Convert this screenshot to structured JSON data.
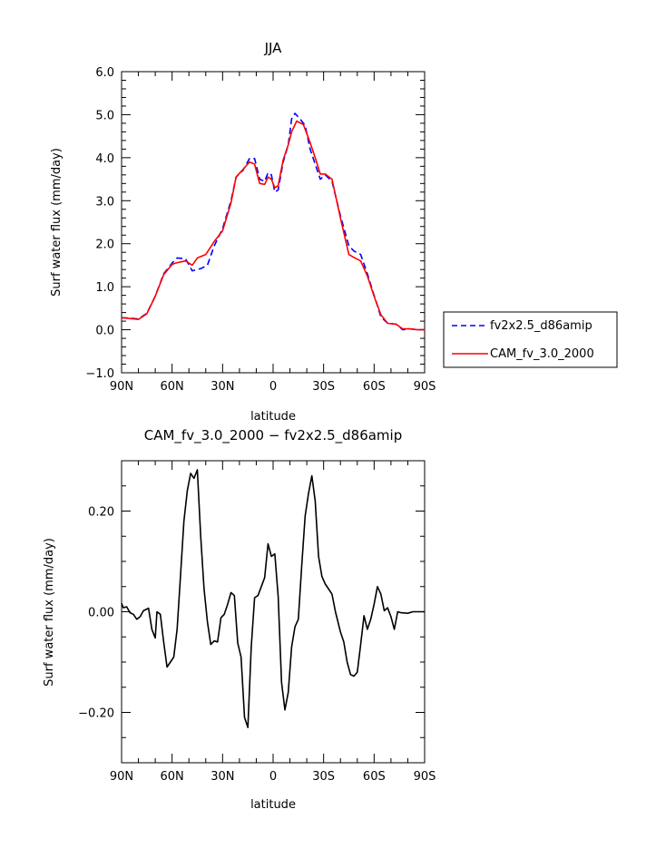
{
  "chart_data": [
    {
      "type": "line",
      "title": "JJA",
      "xlabel": "latitude",
      "ylabel": "Surf water flux (mm/day)",
      "xlim": [
        -90,
        90
      ],
      "ylim": [
        -1.0,
        6.0
      ],
      "x_ticks": [
        {
          "value": -90,
          "label": "90N"
        },
        {
          "value": -60,
          "label": "60N"
        },
        {
          "value": -30,
          "label": "30N"
        },
        {
          "value": 0,
          "label": "0"
        },
        {
          "value": 30,
          "label": "30S"
        },
        {
          "value": 60,
          "label": "60S"
        },
        {
          "value": 90,
          "label": "90S"
        }
      ],
      "y_ticks": [
        {
          "value": -1.0,
          "label": "−1.0"
        },
        {
          "value": 0.0,
          "label": "0.0"
        },
        {
          "value": 1.0,
          "label": "1.0"
        },
        {
          "value": 2.0,
          "label": "2.0"
        },
        {
          "value": 3.0,
          "label": "3.0"
        },
        {
          "value": 4.0,
          "label": "4.0"
        },
        {
          "value": 5.0,
          "label": "5.0"
        },
        {
          "value": 6.0,
          "label": "6.0"
        }
      ],
      "grid": false,
      "legend": "right",
      "series": [
        {
          "name": "fv2x2.5_d86amip",
          "color": "#0000ff",
          "dash": true,
          "points": [
            [
              -90,
              0.28
            ],
            [
              -85,
              0.27
            ],
            [
              -80,
              0.25
            ],
            [
              -75,
              0.38
            ],
            [
              -70,
              0.78
            ],
            [
              -65,
              1.3
            ],
            [
              -60,
              1.55
            ],
            [
              -57,
              1.67
            ],
            [
              -52,
              1.65
            ],
            [
              -48,
              1.37
            ],
            [
              -43,
              1.42
            ],
            [
              -39,
              1.5
            ],
            [
              -35,
              1.95
            ],
            [
              -30,
              2.35
            ],
            [
              -25,
              3.0
            ],
            [
              -22,
              3.55
            ],
            [
              -18,
              3.7
            ],
            [
              -14,
              3.98
            ],
            [
              -11,
              3.98
            ],
            [
              -8,
              3.5
            ],
            [
              -5,
              3.45
            ],
            [
              -3,
              3.65
            ],
            [
              -1,
              3.6
            ],
            [
              1,
              3.2
            ],
            [
              3,
              3.25
            ],
            [
              6,
              3.9
            ],
            [
              9,
              4.3
            ],
            [
              11,
              4.9
            ],
            [
              13,
              5.03
            ],
            [
              16,
              4.9
            ],
            [
              19,
              4.75
            ],
            [
              22,
              4.2
            ],
            [
              25,
              3.85
            ],
            [
              28,
              3.5
            ],
            [
              31,
              3.6
            ],
            [
              35,
              3.45
            ],
            [
              40,
              2.65
            ],
            [
              45,
              1.95
            ],
            [
              48,
              1.83
            ],
            [
              52,
              1.75
            ],
            [
              56,
              1.3
            ],
            [
              60,
              0.8
            ],
            [
              64,
              0.3
            ],
            [
              68,
              0.15
            ],
            [
              73,
              0.13
            ],
            [
              77,
              0.0
            ],
            [
              81,
              0.02
            ],
            [
              86,
              0.0
            ],
            [
              90,
              0.0
            ]
          ]
        },
        {
          "name": "CAM_fv_3.0_2000",
          "color": "#ff0000",
          "dash": false,
          "points": [
            [
              -90,
              0.28
            ],
            [
              -85,
              0.26
            ],
            [
              -80,
              0.24
            ],
            [
              -75,
              0.37
            ],
            [
              -70,
              0.78
            ],
            [
              -65,
              1.28
            ],
            [
              -60,
              1.52
            ],
            [
              -57,
              1.56
            ],
            [
              -52,
              1.6
            ],
            [
              -48,
              1.5
            ],
            [
              -45,
              1.67
            ],
            [
              -40,
              1.75
            ],
            [
              -35,
              2.05
            ],
            [
              -30,
              2.3
            ],
            [
              -25,
              2.95
            ],
            [
              -22,
              3.55
            ],
            [
              -18,
              3.72
            ],
            [
              -14,
              3.9
            ],
            [
              -11,
              3.85
            ],
            [
              -8,
              3.4
            ],
            [
              -5,
              3.38
            ],
            [
              -3,
              3.55
            ],
            [
              -1,
              3.5
            ],
            [
              1,
              3.3
            ],
            [
              3,
              3.35
            ],
            [
              6,
              3.95
            ],
            [
              9,
              4.3
            ],
            [
              11,
              4.6
            ],
            [
              14,
              4.85
            ],
            [
              18,
              4.77
            ],
            [
              22,
              4.35
            ],
            [
              25,
              4.0
            ],
            [
              28,
              3.62
            ],
            [
              31,
              3.62
            ],
            [
              35,
              3.5
            ],
            [
              40,
              2.6
            ],
            [
              45,
              1.75
            ],
            [
              48,
              1.68
            ],
            [
              52,
              1.6
            ],
            [
              56,
              1.25
            ],
            [
              60,
              0.78
            ],
            [
              64,
              0.35
            ],
            [
              68,
              0.15
            ],
            [
              73,
              0.13
            ],
            [
              77,
              0.02
            ],
            [
              81,
              0.02
            ],
            [
              86,
              0.0
            ],
            [
              90,
              0.0
            ]
          ]
        }
      ]
    },
    {
      "type": "line",
      "title": "CAM_fv_3.0_2000 − fv2x2.5_d86amip",
      "xlabel": "latitude",
      "ylabel": "Surf water flux (mm/day)",
      "xlim": [
        -90,
        90
      ],
      "ylim": [
        -0.3,
        0.3
      ],
      "x_ticks": [
        {
          "value": -90,
          "label": "90N"
        },
        {
          "value": -60,
          "label": "60N"
        },
        {
          "value": -30,
          "label": "30N"
        },
        {
          "value": 0,
          "label": "0"
        },
        {
          "value": 30,
          "label": "30S"
        },
        {
          "value": 60,
          "label": "60S"
        },
        {
          "value": 90,
          "label": "90S"
        }
      ],
      "y_ticks": [
        {
          "value": -0.2,
          "label": "−0.20"
        },
        {
          "value": 0.0,
          "label": "0.00"
        },
        {
          "value": 0.2,
          "label": "0.20"
        }
      ],
      "grid": false,
      "series": [
        {
          "name": "",
          "color": "#000000",
          "dash": false,
          "points": [
            [
              -90,
              0.017
            ],
            [
              -89,
              0.008
            ],
            [
              -87,
              0.01
            ],
            [
              -85,
              -0.002
            ],
            [
              -83,
              -0.005
            ],
            [
              -81,
              -0.015
            ],
            [
              -79,
              -0.01
            ],
            [
              -77,
              0.002
            ],
            [
              -74,
              0.007
            ],
            [
              -72,
              -0.035
            ],
            [
              -70,
              -0.052
            ],
            [
              -69,
              0.0
            ],
            [
              -67,
              -0.005
            ],
            [
              -65,
              -0.06
            ],
            [
              -63,
              -0.11
            ],
            [
              -61,
              -0.1
            ],
            [
              -59,
              -0.09
            ],
            [
              -57,
              -0.035
            ],
            [
              -55,
              0.07
            ],
            [
              -53,
              0.18
            ],
            [
              -51,
              0.24
            ],
            [
              -49,
              0.275
            ],
            [
              -47,
              0.265
            ],
            [
              -45,
              0.282
            ],
            [
              -43,
              0.15
            ],
            [
              -41,
              0.045
            ],
            [
              -39,
              -0.02
            ],
            [
              -37,
              -0.065
            ],
            [
              -35,
              -0.058
            ],
            [
              -33,
              -0.06
            ],
            [
              -31,
              -0.012
            ],
            [
              -29,
              -0.005
            ],
            [
              -27,
              0.015
            ],
            [
              -25,
              0.038
            ],
            [
              -23,
              0.032
            ],
            [
              -21,
              -0.062
            ],
            [
              -19,
              -0.09
            ],
            [
              -17,
              -0.21
            ],
            [
              -15,
              -0.23
            ],
            [
              -13,
              -0.07
            ],
            [
              -11,
              0.028
            ],
            [
              -9,
              0.032
            ],
            [
              -7,
              0.05
            ],
            [
              -5,
              0.068
            ],
            [
              -3,
              0.135
            ],
            [
              -1,
              0.11
            ],
            [
              1,
              0.115
            ],
            [
              3,
              0.03
            ],
            [
              5,
              -0.14
            ],
            [
              7,
              -0.195
            ],
            [
              9,
              -0.16
            ],
            [
              11,
              -0.07
            ],
            [
              13,
              -0.03
            ],
            [
              15,
              -0.015
            ],
            [
              17,
              0.09
            ],
            [
              19,
              0.19
            ],
            [
              21,
              0.235
            ],
            [
              23,
              0.27
            ],
            [
              25,
              0.22
            ],
            [
              27,
              0.11
            ],
            [
              29,
              0.07
            ],
            [
              31,
              0.055
            ],
            [
              33,
              0.045
            ],
            [
              35,
              0.035
            ],
            [
              37,
              0.0
            ],
            [
              40,
              -0.04
            ],
            [
              42,
              -0.06
            ],
            [
              44,
              -0.1
            ],
            [
              46,
              -0.125
            ],
            [
              48,
              -0.128
            ],
            [
              50,
              -0.12
            ],
            [
              52,
              -0.065
            ],
            [
              54,
              -0.008
            ],
            [
              56,
              -0.035
            ],
            [
              58,
              -0.015
            ],
            [
              60,
              0.015
            ],
            [
              62,
              0.05
            ],
            [
              64,
              0.035
            ],
            [
              66,
              0.002
            ],
            [
              68,
              0.008
            ],
            [
              70,
              -0.01
            ],
            [
              72,
              -0.035
            ],
            [
              74,
              0.0
            ],
            [
              76,
              -0.002
            ],
            [
              80,
              -0.003
            ],
            [
              83,
              0.0
            ],
            [
              90,
              0.0
            ]
          ]
        }
      ]
    }
  ]
}
